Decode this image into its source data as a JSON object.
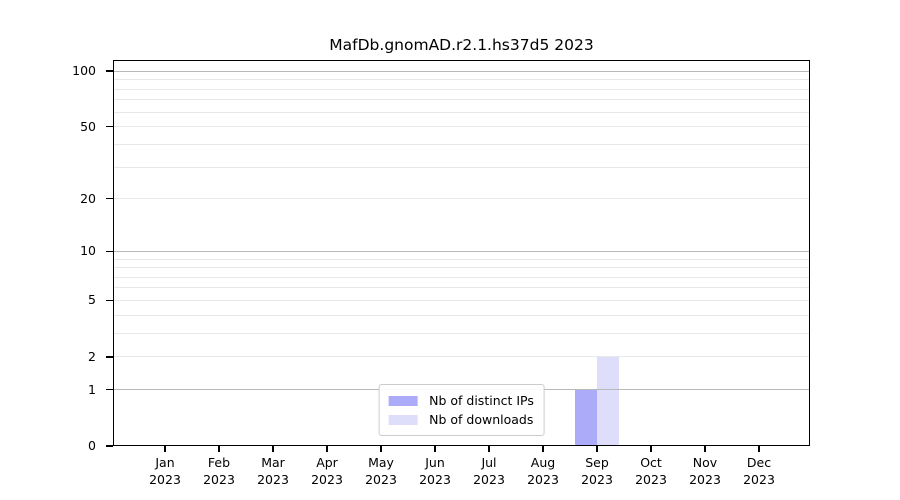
{
  "chart_data": {
    "type": "bar",
    "title": "MafDb.gnomAD.r2.1.hs37d5 2023",
    "x": {
      "months": [
        "Jan",
        "Feb",
        "Mar",
        "Apr",
        "May",
        "Jun",
        "Jul",
        "Aug",
        "Sep",
        "Oct",
        "Nov",
        "Dec"
      ],
      "year": "2023"
    },
    "series": [
      {
        "name": "Nb of distinct IPs",
        "color": "#ababfa",
        "values": [
          0,
          0,
          0,
          0,
          0,
          0,
          0,
          0,
          1,
          0,
          0,
          0
        ]
      },
      {
        "name": "Nb of downloads",
        "color": "#dedefa",
        "values": [
          0,
          0,
          0,
          0,
          0,
          0,
          0,
          0,
          2,
          0,
          0,
          0
        ]
      }
    ],
    "y_axis": {
      "scale": "log1p",
      "ticks": [
        0,
        1,
        2,
        5,
        10,
        20,
        50,
        100
      ],
      "major_gridlines": [
        1,
        10,
        100
      ],
      "minor_gridlines": [
        2,
        3,
        4,
        5,
        6,
        7,
        8,
        9,
        20,
        30,
        40,
        50,
        60,
        70,
        80,
        90
      ],
      "ylim": [
        0,
        116
      ]
    },
    "legend": {
      "position": "lower center",
      "entries": [
        "Nb of distinct IPs",
        "Nb of downloads"
      ]
    },
    "grid": true
  },
  "colors": {
    "background": "#ffffff",
    "spine": "#000000",
    "major_grid": "#b9b9b9",
    "minor_grid": "#e8e8e8",
    "text": "#000000",
    "legend_border": "#cccccc"
  }
}
